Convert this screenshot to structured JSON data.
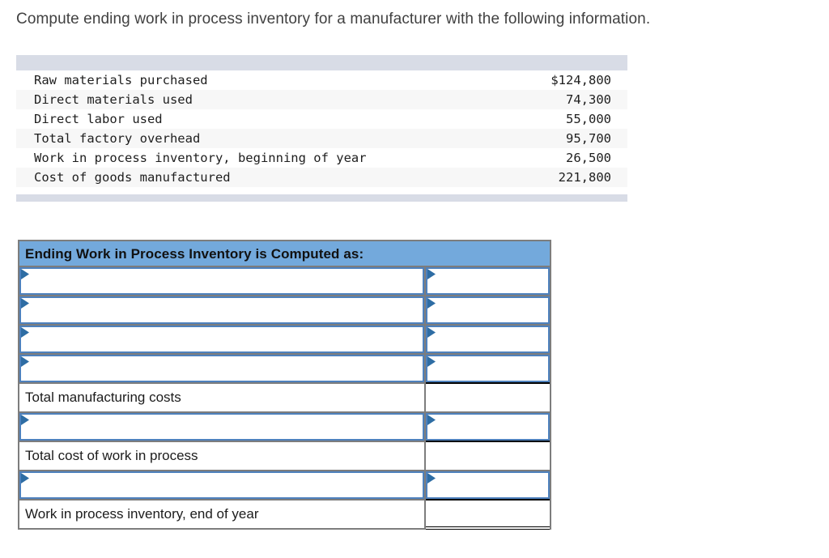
{
  "title": "Compute ending work in process inventory for a manufacturer with the following information.",
  "given_table": {
    "rows": [
      {
        "label": "Raw materials purchased",
        "value": "$124,800"
      },
      {
        "label": "Direct materials used",
        "value": "74,300"
      },
      {
        "label": "Direct labor used",
        "value": "55,000"
      },
      {
        "label": "Total factory overhead",
        "value": "95,700"
      },
      {
        "label": "Work in process inventory, beginning of year",
        "value": "26,500"
      },
      {
        "label": "Cost of goods manufactured",
        "value": "221,800"
      }
    ]
  },
  "worksheet": {
    "header": "Ending Work in Process Inventory is Computed as:",
    "rows": [
      {
        "kind": "select",
        "right_rule": "none"
      },
      {
        "kind": "select",
        "right_rule": "none"
      },
      {
        "kind": "select",
        "right_rule": "none"
      },
      {
        "kind": "select",
        "right_rule": "single"
      },
      {
        "kind": "label",
        "label": "Total manufacturing costs",
        "right_rule": "none"
      },
      {
        "kind": "select",
        "right_rule": "single"
      },
      {
        "kind": "label",
        "label": "Total cost of work in process",
        "right_rule": "none"
      },
      {
        "kind": "select",
        "right_rule": "single"
      },
      {
        "kind": "label",
        "label": "Work in process inventory, end of year",
        "right_rule": "double"
      }
    ]
  },
  "icons": {
    "dropdown_flag": "dropdown-flag-icon"
  },
  "colors": {
    "header_blue": "#73a9dc",
    "select_border_blue": "#4e81bd",
    "pennant_blue": "#2e6da4",
    "bar_gray": "#d8dce6",
    "stripe_gray": "#f7f7f7",
    "grid_gray": "#7d7d7d"
  }
}
